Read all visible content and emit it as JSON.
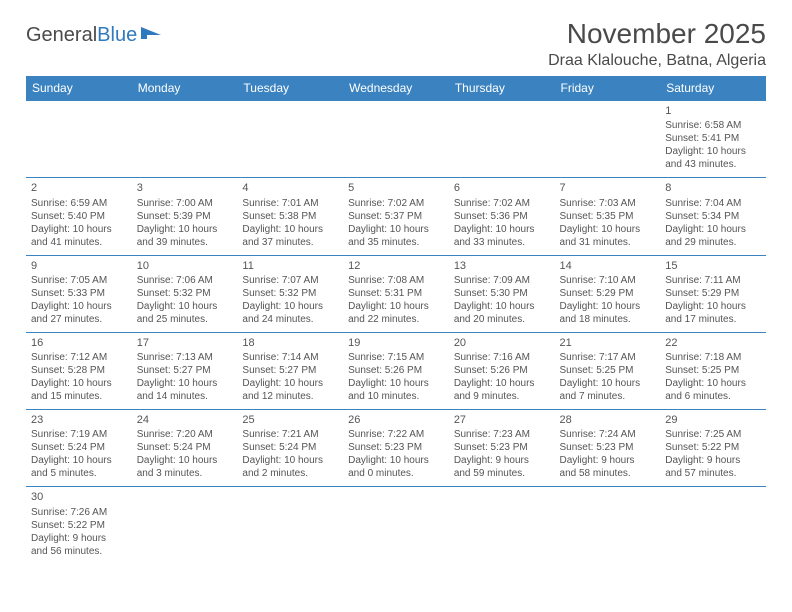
{
  "brand": {
    "name_a": "General",
    "name_b": "Blue"
  },
  "title": "November 2025",
  "location": "Draa Klalouche, Batna, Algeria",
  "colors": {
    "header_bg": "#3b83c0",
    "header_fg": "#ffffff",
    "rule": "#3b83c0",
    "text": "#555555"
  },
  "weekdays": [
    "Sunday",
    "Monday",
    "Tuesday",
    "Wednesday",
    "Thursday",
    "Friday",
    "Saturday"
  ],
  "weeks": [
    [
      null,
      null,
      null,
      null,
      null,
      null,
      {
        "d": "1",
        "sr": "Sunrise: 6:58 AM",
        "ss": "Sunset: 5:41 PM",
        "dl1": "Daylight: 10 hours",
        "dl2": "and 43 minutes."
      }
    ],
    [
      {
        "d": "2",
        "sr": "Sunrise: 6:59 AM",
        "ss": "Sunset: 5:40 PM",
        "dl1": "Daylight: 10 hours",
        "dl2": "and 41 minutes."
      },
      {
        "d": "3",
        "sr": "Sunrise: 7:00 AM",
        "ss": "Sunset: 5:39 PM",
        "dl1": "Daylight: 10 hours",
        "dl2": "and 39 minutes."
      },
      {
        "d": "4",
        "sr": "Sunrise: 7:01 AM",
        "ss": "Sunset: 5:38 PM",
        "dl1": "Daylight: 10 hours",
        "dl2": "and 37 minutes."
      },
      {
        "d": "5",
        "sr": "Sunrise: 7:02 AM",
        "ss": "Sunset: 5:37 PM",
        "dl1": "Daylight: 10 hours",
        "dl2": "and 35 minutes."
      },
      {
        "d": "6",
        "sr": "Sunrise: 7:02 AM",
        "ss": "Sunset: 5:36 PM",
        "dl1": "Daylight: 10 hours",
        "dl2": "and 33 minutes."
      },
      {
        "d": "7",
        "sr": "Sunrise: 7:03 AM",
        "ss": "Sunset: 5:35 PM",
        "dl1": "Daylight: 10 hours",
        "dl2": "and 31 minutes."
      },
      {
        "d": "8",
        "sr": "Sunrise: 7:04 AM",
        "ss": "Sunset: 5:34 PM",
        "dl1": "Daylight: 10 hours",
        "dl2": "and 29 minutes."
      }
    ],
    [
      {
        "d": "9",
        "sr": "Sunrise: 7:05 AM",
        "ss": "Sunset: 5:33 PM",
        "dl1": "Daylight: 10 hours",
        "dl2": "and 27 minutes."
      },
      {
        "d": "10",
        "sr": "Sunrise: 7:06 AM",
        "ss": "Sunset: 5:32 PM",
        "dl1": "Daylight: 10 hours",
        "dl2": "and 25 minutes."
      },
      {
        "d": "11",
        "sr": "Sunrise: 7:07 AM",
        "ss": "Sunset: 5:32 PM",
        "dl1": "Daylight: 10 hours",
        "dl2": "and 24 minutes."
      },
      {
        "d": "12",
        "sr": "Sunrise: 7:08 AM",
        "ss": "Sunset: 5:31 PM",
        "dl1": "Daylight: 10 hours",
        "dl2": "and 22 minutes."
      },
      {
        "d": "13",
        "sr": "Sunrise: 7:09 AM",
        "ss": "Sunset: 5:30 PM",
        "dl1": "Daylight: 10 hours",
        "dl2": "and 20 minutes."
      },
      {
        "d": "14",
        "sr": "Sunrise: 7:10 AM",
        "ss": "Sunset: 5:29 PM",
        "dl1": "Daylight: 10 hours",
        "dl2": "and 18 minutes."
      },
      {
        "d": "15",
        "sr": "Sunrise: 7:11 AM",
        "ss": "Sunset: 5:29 PM",
        "dl1": "Daylight: 10 hours",
        "dl2": "and 17 minutes."
      }
    ],
    [
      {
        "d": "16",
        "sr": "Sunrise: 7:12 AM",
        "ss": "Sunset: 5:28 PM",
        "dl1": "Daylight: 10 hours",
        "dl2": "and 15 minutes."
      },
      {
        "d": "17",
        "sr": "Sunrise: 7:13 AM",
        "ss": "Sunset: 5:27 PM",
        "dl1": "Daylight: 10 hours",
        "dl2": "and 14 minutes."
      },
      {
        "d": "18",
        "sr": "Sunrise: 7:14 AM",
        "ss": "Sunset: 5:27 PM",
        "dl1": "Daylight: 10 hours",
        "dl2": "and 12 minutes."
      },
      {
        "d": "19",
        "sr": "Sunrise: 7:15 AM",
        "ss": "Sunset: 5:26 PM",
        "dl1": "Daylight: 10 hours",
        "dl2": "and 10 minutes."
      },
      {
        "d": "20",
        "sr": "Sunrise: 7:16 AM",
        "ss": "Sunset: 5:26 PM",
        "dl1": "Daylight: 10 hours",
        "dl2": "and 9 minutes."
      },
      {
        "d": "21",
        "sr": "Sunrise: 7:17 AM",
        "ss": "Sunset: 5:25 PM",
        "dl1": "Daylight: 10 hours",
        "dl2": "and 7 minutes."
      },
      {
        "d": "22",
        "sr": "Sunrise: 7:18 AM",
        "ss": "Sunset: 5:25 PM",
        "dl1": "Daylight: 10 hours",
        "dl2": "and 6 minutes."
      }
    ],
    [
      {
        "d": "23",
        "sr": "Sunrise: 7:19 AM",
        "ss": "Sunset: 5:24 PM",
        "dl1": "Daylight: 10 hours",
        "dl2": "and 5 minutes."
      },
      {
        "d": "24",
        "sr": "Sunrise: 7:20 AM",
        "ss": "Sunset: 5:24 PM",
        "dl1": "Daylight: 10 hours",
        "dl2": "and 3 minutes."
      },
      {
        "d": "25",
        "sr": "Sunrise: 7:21 AM",
        "ss": "Sunset: 5:24 PM",
        "dl1": "Daylight: 10 hours",
        "dl2": "and 2 minutes."
      },
      {
        "d": "26",
        "sr": "Sunrise: 7:22 AM",
        "ss": "Sunset: 5:23 PM",
        "dl1": "Daylight: 10 hours",
        "dl2": "and 0 minutes."
      },
      {
        "d": "27",
        "sr": "Sunrise: 7:23 AM",
        "ss": "Sunset: 5:23 PM",
        "dl1": "Daylight: 9 hours",
        "dl2": "and 59 minutes."
      },
      {
        "d": "28",
        "sr": "Sunrise: 7:24 AM",
        "ss": "Sunset: 5:23 PM",
        "dl1": "Daylight: 9 hours",
        "dl2": "and 58 minutes."
      },
      {
        "d": "29",
        "sr": "Sunrise: 7:25 AM",
        "ss": "Sunset: 5:22 PM",
        "dl1": "Daylight: 9 hours",
        "dl2": "and 57 minutes."
      }
    ],
    [
      {
        "d": "30",
        "sr": "Sunrise: 7:26 AM",
        "ss": "Sunset: 5:22 PM",
        "dl1": "Daylight: 9 hours",
        "dl2": "and 56 minutes."
      },
      null,
      null,
      null,
      null,
      null,
      null
    ]
  ]
}
